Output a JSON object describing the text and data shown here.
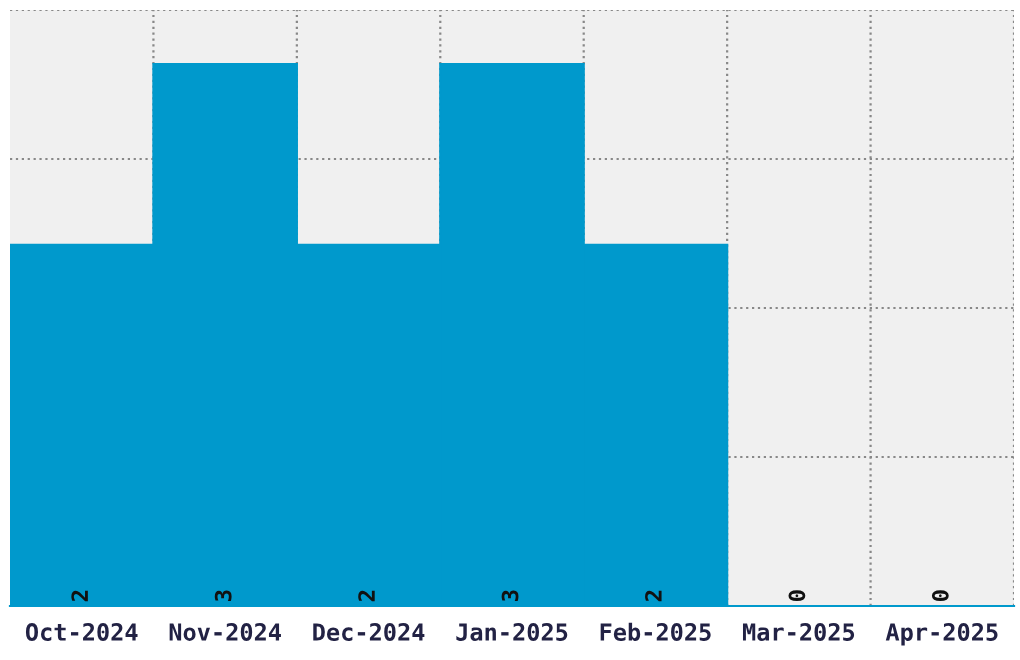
{
  "chart_data": {
    "type": "bar",
    "categories": [
      "Oct-2024",
      "Nov-2024",
      "Dec-2024",
      "Jan-2025",
      "Feb-2025",
      "Mar-2025",
      "Apr-2025"
    ],
    "values": [
      2,
      3,
      2,
      3,
      2,
      0,
      0
    ],
    "color": "#0099cc",
    "data_labels": true,
    "ylim": [
      0,
      3.3
    ],
    "yticks": [
      {
        "value": 0.825,
        "label": null
      },
      {
        "value": 1.65,
        "label": null
      },
      {
        "value": 2.475,
        "label": null
      },
      {
        "value": 3.3,
        "label": null
      }
    ],
    "tick_labels": "x",
    "grid": true
  }
}
